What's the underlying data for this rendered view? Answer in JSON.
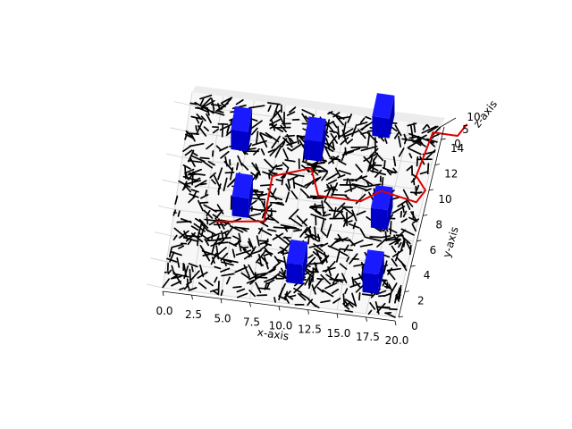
{
  "chart_data": {
    "type": "3d-line",
    "title": "",
    "xlabel": "x-axis",
    "ylabel": "y-axis",
    "zlabel": "z-axis",
    "xlim": [
      0,
      20
    ],
    "ylim": [
      0,
      15
    ],
    "zlim": [
      0,
      10
    ],
    "x_ticks": [
      "0.0",
      "2.5",
      "5.0",
      "7.5",
      "10.0",
      "12.5",
      "15.0",
      "17.5",
      "20.0"
    ],
    "y_ticks": [
      "0",
      "2",
      "4",
      "6",
      "8",
      "10",
      "12",
      "14"
    ],
    "z_ticks": [
      "0",
      "5",
      "10"
    ],
    "grid": true,
    "colors": {
      "network": "#000000",
      "obstacles": "#0000dd",
      "path": "#dd0000"
    },
    "obstacles": [
      {
        "x": 4.5,
        "y": 12.0
      },
      {
        "x": 10.5,
        "y": 12.0
      },
      {
        "x": 15.5,
        "y": 14.5
      },
      {
        "x": 5.5,
        "y": 7.0
      },
      {
        "x": 17.0,
        "y": 7.5
      },
      {
        "x": 11.0,
        "y": 2.5
      },
      {
        "x": 17.5,
        "y": 2.5
      }
    ],
    "path": [
      {
        "x": 3.5,
        "y": 5.5
      },
      {
        "x": 7.5,
        "y": 6.0
      },
      {
        "x": 7.5,
        "y": 9.5
      },
      {
        "x": 10.5,
        "y": 10.5
      },
      {
        "x": 11.5,
        "y": 8.5
      },
      {
        "x": 15.0,
        "y": 8.5
      },
      {
        "x": 16.5,
        "y": 9.5
      },
      {
        "x": 19.5,
        "y": 9.0
      },
      {
        "x": 20.0,
        "y": 10.0
      },
      {
        "x": 19.0,
        "y": 11.0
      },
      {
        "x": 19.5,
        "y": 14.5
      },
      {
        "x": 21.5,
        "y": 14.5
      },
      {
        "x": 22.0,
        "y": 15.5
      }
    ]
  }
}
